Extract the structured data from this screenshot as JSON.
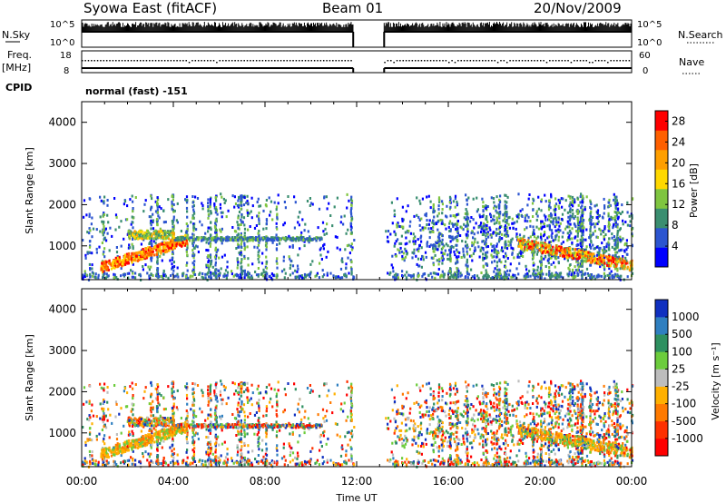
{
  "header": {
    "station": "Syowa East (fitACF)",
    "beam": "Beam 01",
    "date": "20/Nov/2009"
  },
  "strips": {
    "nsky_label": "N.Sky",
    "nsky_ticks": [
      "10^5",
      "10^0"
    ],
    "nsearch_label": "N.Search",
    "nsearch_ticks": [
      "10^5",
      "10^0"
    ],
    "freq_label": "Freq.",
    "freq_unit": "[MHz]",
    "freq_ticks": [
      "18",
      "8"
    ],
    "nave_label": "Nave",
    "nave_ticks": [
      "60",
      "0"
    ],
    "cpid_label": "CPID",
    "cpid_value": "normal (fast) -151"
  },
  "chart_data": [
    {
      "type": "heatmap",
      "name": "power",
      "ylabel": "Slant Range [km]",
      "xlabel": "",
      "x_ticks": [
        "00:00",
        "04:00",
        "08:00",
        "12:00",
        "16:00",
        "20:00",
        "00:00"
      ],
      "x_range_hours": [
        0,
        24
      ],
      "y_ticks": [
        1000,
        2000,
        3000,
        4000
      ],
      "ylim": [
        180,
        4500
      ],
      "data_gap_hours": [
        11.85,
        13.2
      ],
      "colorbar": {
        "label": "Power [dB]",
        "ticks": [
          "4",
          "8",
          "12",
          "16",
          "20",
          "24",
          "28"
        ],
        "range": [
          0,
          30
        ],
        "colors": [
          "#0000ff",
          "#2c55d0",
          "#3a8e70",
          "#7fc540",
          "#ffd800",
          "#ff9f00",
          "#ff6000",
          "#ff0000"
        ]
      }
    },
    {
      "type": "heatmap",
      "name": "velocity",
      "ylabel": "Slant Range [km]",
      "xlabel": "Time UT",
      "x_ticks": [
        "00:00",
        "04:00",
        "08:00",
        "12:00",
        "16:00",
        "20:00",
        "00:00"
      ],
      "x_range_hours": [
        0,
        24
      ],
      "y_ticks": [
        1000,
        2000,
        3000,
        4000
      ],
      "ylim": [
        180,
        4500
      ],
      "data_gap_hours": [
        11.85,
        13.2
      ],
      "colorbar": {
        "label": "Velocity [m s⁻¹]",
        "ticks": [
          "1000",
          "500",
          "100",
          "25",
          "-25",
          "-100",
          "-500",
          "-1000"
        ],
        "colors": [
          "#1030c0",
          "#2f7fc0",
          "#2e9060",
          "#6ccc3c",
          "#bdbdbd",
          "#ffb000",
          "#ff7a00",
          "#ff3000",
          "#ff0000"
        ]
      }
    }
  ]
}
